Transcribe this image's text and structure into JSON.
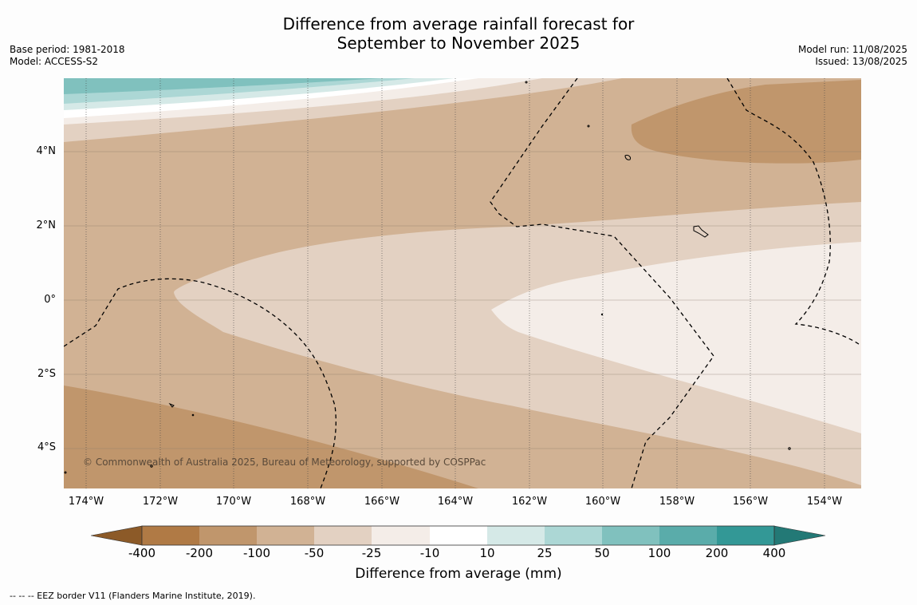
{
  "title": {
    "line1": "Difference from average rainfall forecast for",
    "line2": "September to November 2025"
  },
  "meta_left": {
    "base_period": "Base period: 1981-2018",
    "model": "Model: ACCESS-S2"
  },
  "meta_right": {
    "model_run": "Model run: 11/08/2025",
    "issued": "Issued: 13/08/2025"
  },
  "map": {
    "lat_labels": [
      "4°N",
      "2°N",
      "0°",
      "2°S",
      "4°S"
    ],
    "lon_labels": [
      "174°W",
      "172°W",
      "170°W",
      "168°W",
      "166°W",
      "164°W",
      "162°W",
      "160°W",
      "158°W",
      "156°W",
      "154°W"
    ],
    "copyright": "© Commonwealth of Australia 2025, Bureau of Meteorology, supported by COSPPac",
    "border_color": "#000000"
  },
  "colorbar": {
    "tick_labels": [
      "-400",
      "-200",
      "-100",
      "-50",
      "-25",
      "-10",
      "10",
      "25",
      "50",
      "100",
      "200",
      "400"
    ],
    "colors": [
      "#8c5a28",
      "#b07a45",
      "#c0966c",
      "#d1b294",
      "#e3d1c2",
      "#f4ede8",
      "#ffffff",
      "#d5e9e7",
      "#acd7d5",
      "#80c1be",
      "#5aacaa",
      "#339896",
      "#237976"
    ],
    "label": "Difference from average (mm)"
  },
  "footnote": "--  --  -- EEZ border V11 (Flanders Marine Institute, 2019)."
}
